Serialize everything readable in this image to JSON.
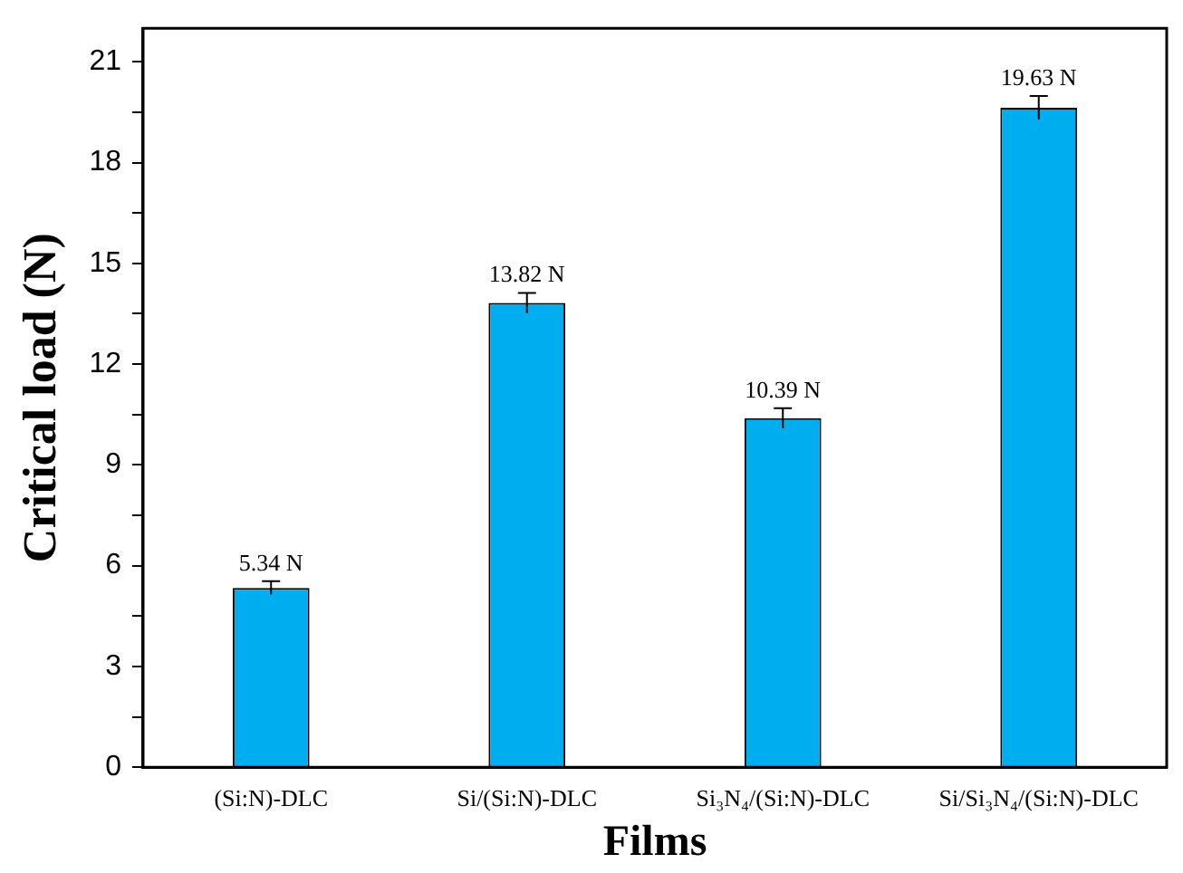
{
  "chart_data": {
    "type": "bar",
    "xlabel": "Films",
    "ylabel": "Critical load (N)",
    "categories": [
      "(Si:N)-DLC",
      "Si/(Si:N)-DLC",
      "Si₃N₄/(Si:N)-DLC",
      "Si/Si₃N₄/(Si:N)-DLC"
    ],
    "values": [
      5.34,
      13.82,
      10.39,
      19.63
    ],
    "color": "#00aeef",
    "errors": [
      0.2,
      0.3,
      0.3,
      0.35
    ],
    "value_labels": [
      "5.34 N",
      "13.82 N",
      "10.39 N",
      "19.63 N"
    ],
    "ylim": [
      0,
      22
    ],
    "yticks": [
      0,
      {
        "value": 1.5,
        "label": null
      },
      3,
      {
        "value": 4.5,
        "label": null
      },
      6,
      {
        "value": 7.5,
        "label": null
      },
      9,
      {
        "value": 10.5,
        "label": null
      },
      12,
      {
        "value": 13.5,
        "label": null
      },
      15,
      {
        "value": 16.5,
        "label": null
      },
      18,
      {
        "value": 19.5,
        "label": null
      },
      21
    ]
  }
}
